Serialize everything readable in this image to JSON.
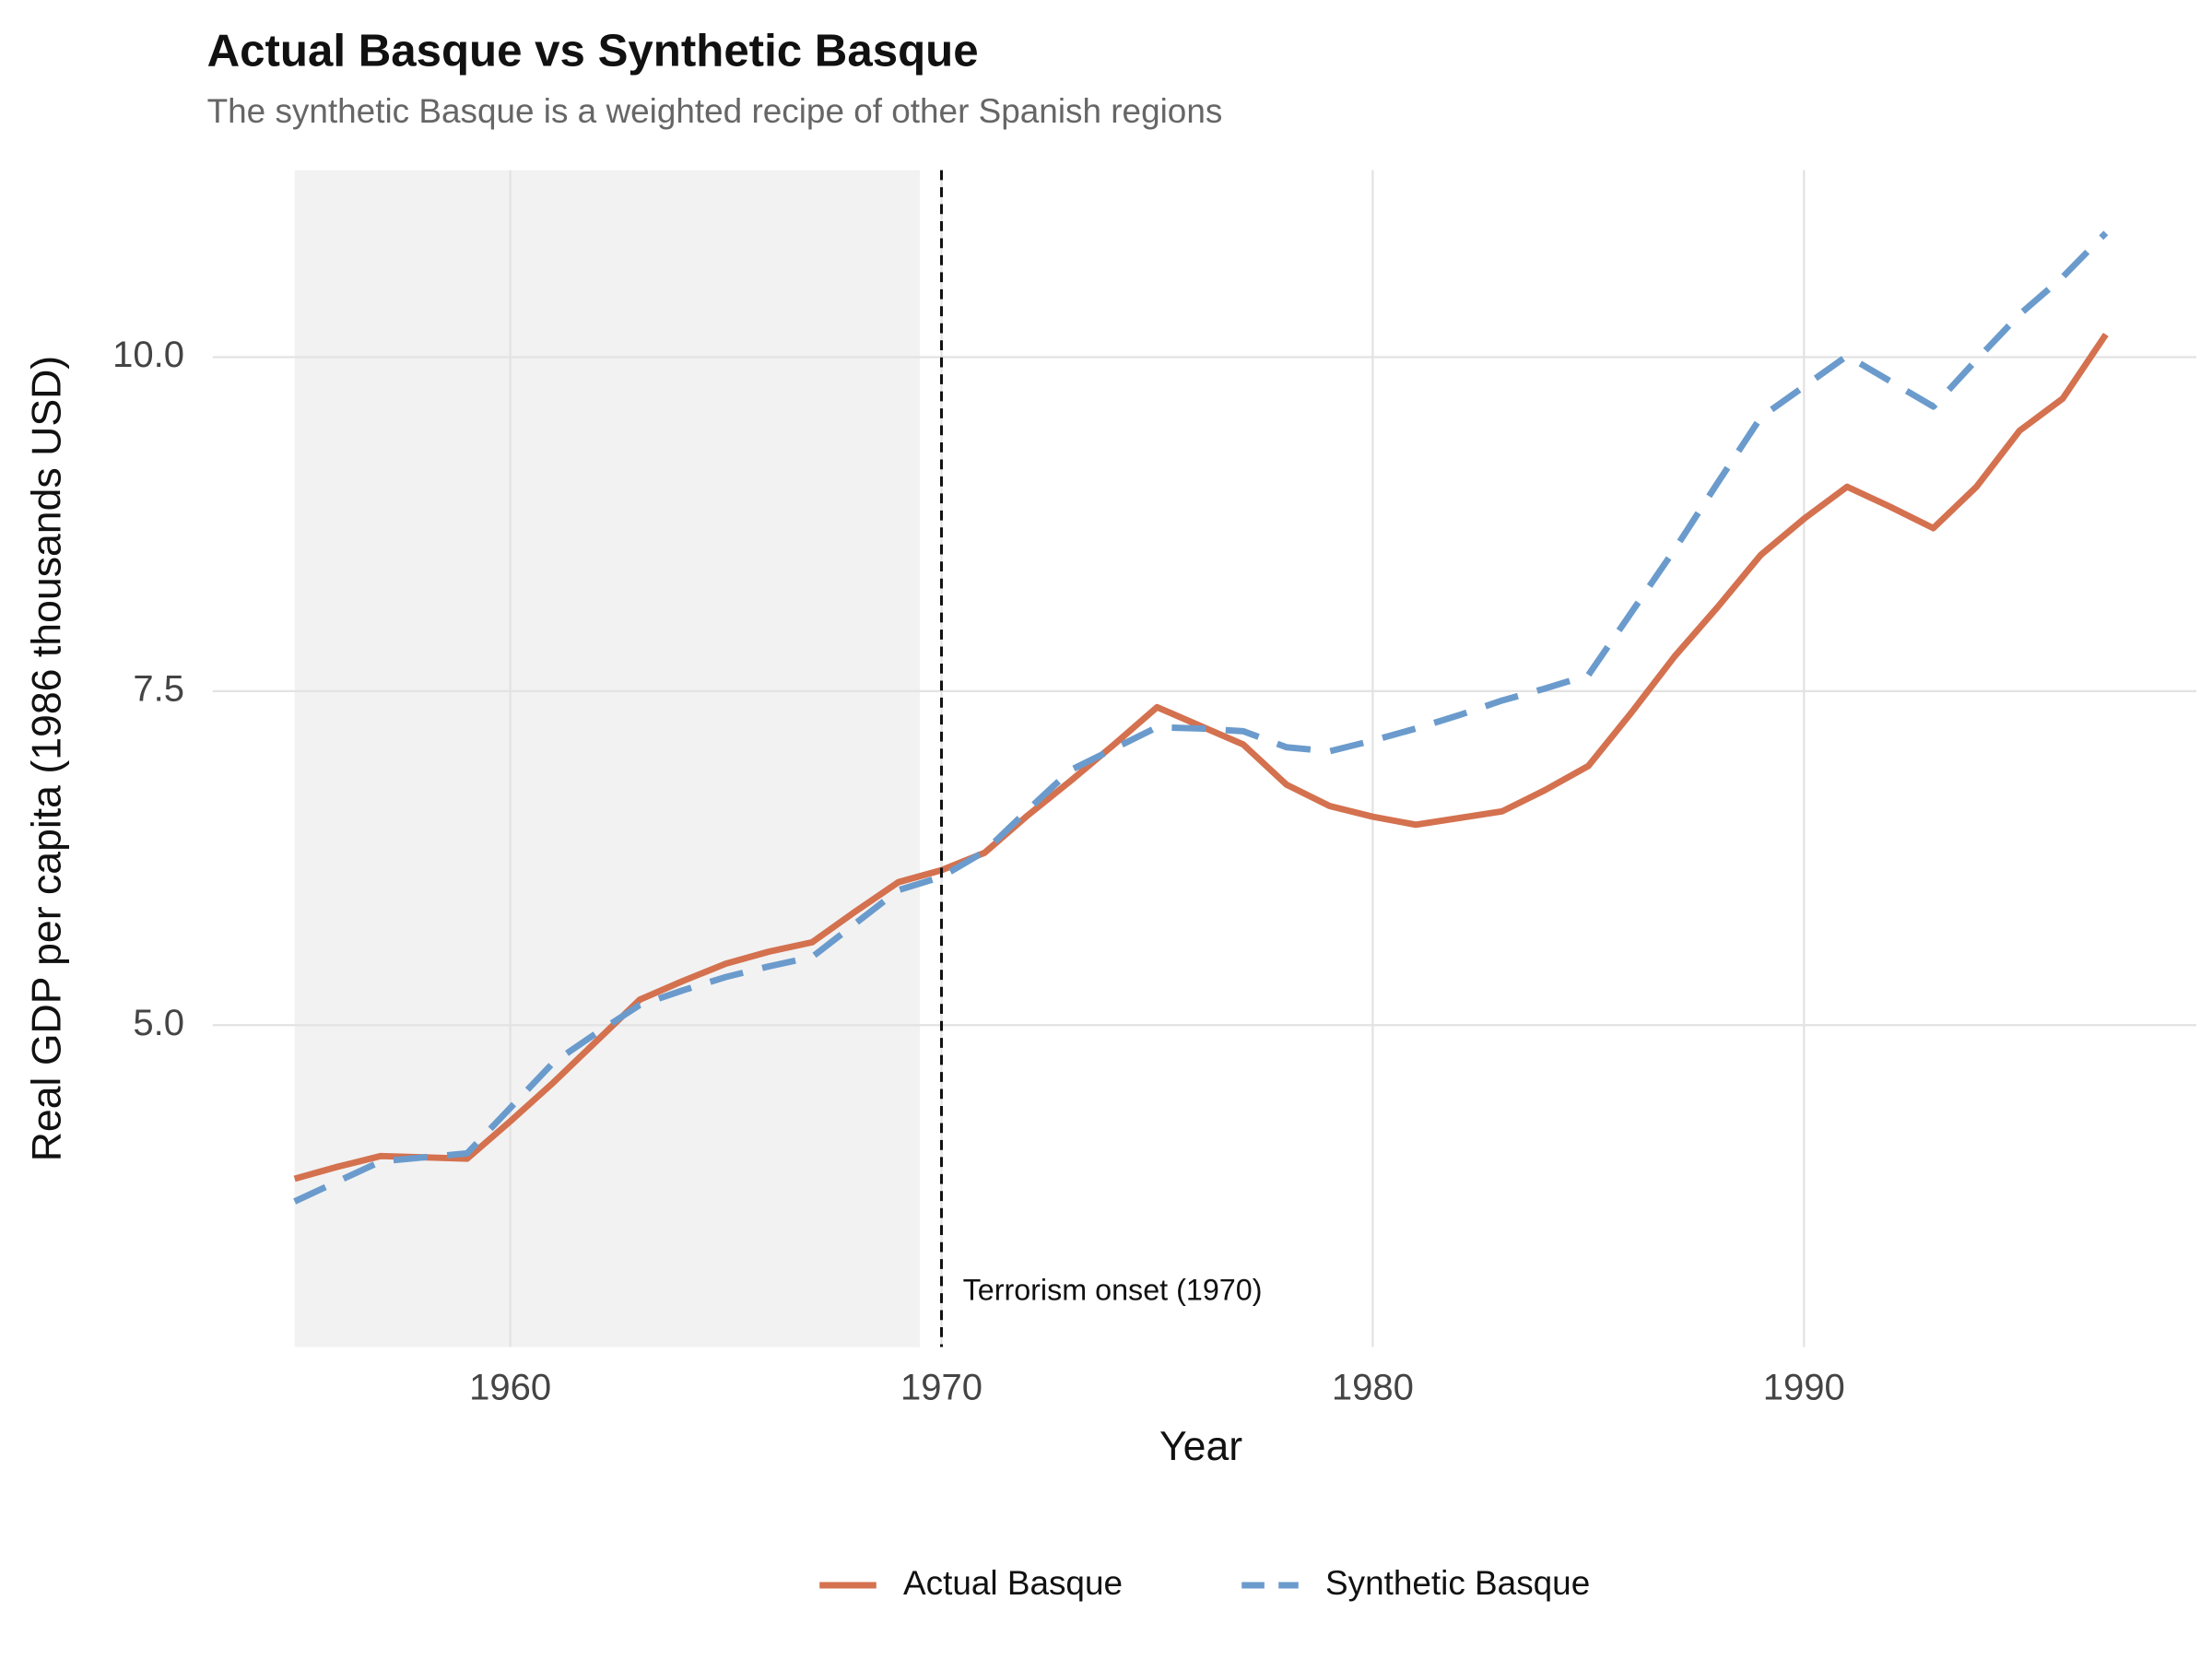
{
  "chart_data": {
    "type": "line",
    "title": "Actual Basque vs Synthetic Basque",
    "subtitle": "The synthetic Basque is a weighted recipe of other Spanish regions",
    "x_label": "Year",
    "y_label": "Real GDP per capita (1986 thousands USD)",
    "x": [
      1955,
      1956,
      1957,
      1958,
      1959,
      1960,
      1961,
      1962,
      1963,
      1964,
      1965,
      1966,
      1967,
      1968,
      1969,
      1970,
      1971,
      1972,
      1973,
      1974,
      1975,
      1976,
      1977,
      1978,
      1979,
      1980,
      1981,
      1982,
      1983,
      1984,
      1985,
      1986,
      1987,
      1988,
      1989,
      1990,
      1991,
      1992,
      1993,
      1994,
      1995,
      1996,
      1997
    ],
    "series": [
      {
        "name": "Actual Basque",
        "color": "#d4714f",
        "dash": false,
        "values": [
          3.85,
          3.94,
          4.02,
          4.01,
          4.0,
          4.28,
          4.57,
          4.88,
          5.19,
          5.33,
          5.46,
          5.55,
          5.62,
          5.85,
          6.07,
          6.16,
          6.29,
          6.57,
          6.83,
          7.1,
          7.38,
          7.24,
          7.1,
          6.8,
          6.64,
          6.56,
          6.5,
          6.55,
          6.6,
          6.76,
          6.94,
          7.34,
          7.76,
          8.13,
          8.52,
          8.79,
          9.03,
          8.88,
          8.72,
          9.03,
          9.45,
          9.69,
          10.17
        ]
      },
      {
        "name": "Synthetic Basque",
        "color": "#6b9bcc",
        "dash": true,
        "values": [
          3.68,
          3.83,
          3.98,
          4.01,
          4.04,
          4.38,
          4.72,
          4.94,
          5.15,
          5.26,
          5.36,
          5.44,
          5.51,
          5.76,
          6.01,
          6.11,
          6.3,
          6.61,
          6.91,
          7.07,
          7.23,
          7.22,
          7.2,
          7.08,
          7.05,
          7.13,
          7.22,
          7.32,
          7.43,
          7.52,
          7.62,
          8.09,
          8.56,
          9.06,
          9.55,
          9.78,
          10.01,
          9.82,
          9.63,
          9.98,
          10.32,
          10.6,
          10.93
        ]
      }
    ],
    "xlim": [
      1953.1,
      1999.1
    ],
    "xticks": [
      1960,
      1970,
      1980,
      1990
    ],
    "ylim": [
      2.59,
      11.4
    ],
    "yticks": [
      {
        "value": 5,
        "label": "5.0"
      },
      7.5,
      {
        "value": 10,
        "label": "10.0"
      }
    ],
    "grid": true,
    "legend": "bottom",
    "shaded_region": [
      1955,
      1969.5
    ],
    "vline": {
      "x": 1970,
      "label": "Terrorism onset (1970)",
      "label_y": 3.0
    }
  }
}
